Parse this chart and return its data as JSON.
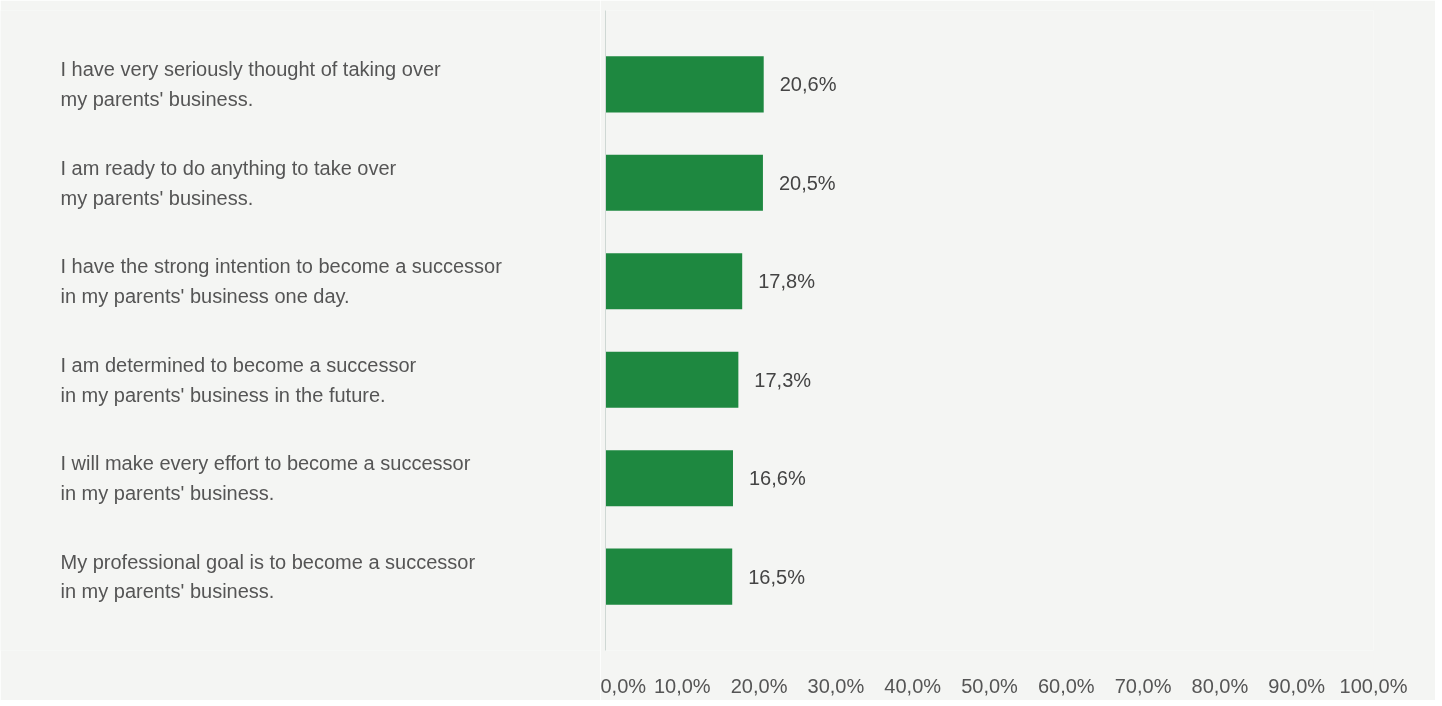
{
  "chart_data": {
    "type": "bar",
    "orientation": "horizontal",
    "categories": [
      "I have very seriously thought of taking over\nmy parents' business.",
      "I am ready to do anything to take over\nmy parents' business.",
      "I have the strong intention to become a successor\nin my parents' business one day.",
      "I am determined to become a successor\nin my parents' business in the future.",
      "I will make every effort to become a successor\nin my parents' business.",
      "My professional goal is to become a successor\nin my parents' business."
    ],
    "values": [
      20.6,
      20.5,
      17.8,
      17.3,
      16.6,
      16.5
    ],
    "value_labels": [
      "20,6%",
      "20,5%",
      "17,8%",
      "17,3%",
      "16,6%",
      "16,5%"
    ],
    "color": "#1e8840",
    "xlim": [
      0,
      100
    ],
    "xticks": [
      {
        "value": 0,
        "label": "0,0%"
      },
      {
        "value": 10,
        "label": "10,0%"
      },
      {
        "value": 20,
        "label": "20,0%"
      },
      {
        "value": 30,
        "label": "30,0%"
      },
      {
        "value": 40,
        "label": "40,0%"
      },
      {
        "value": 50,
        "label": "50,0%"
      },
      {
        "value": 60,
        "label": "60,0%"
      },
      {
        "value": 70,
        "label": "70,0%"
      },
      {
        "value": 80,
        "label": "80,0%"
      },
      {
        "value": 90,
        "label": "90,0%"
      },
      {
        "value": 100,
        "label": "100,0%"
      }
    ],
    "grid": false
  }
}
